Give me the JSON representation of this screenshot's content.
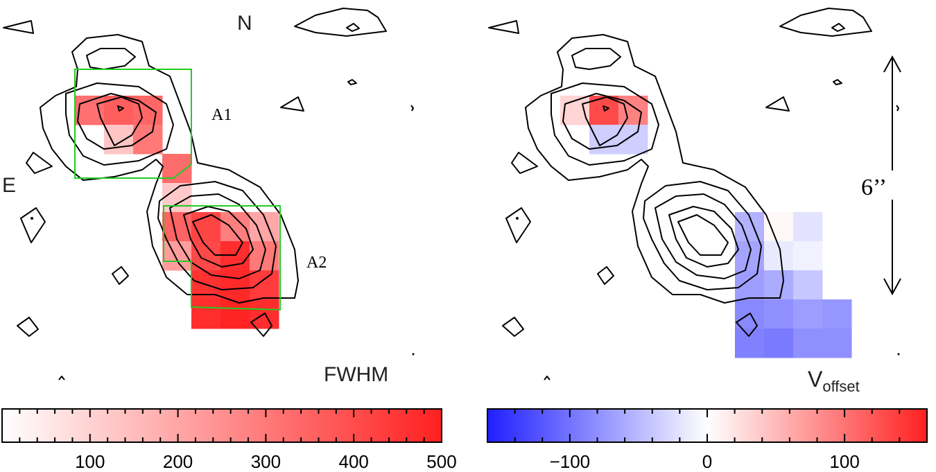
{
  "chart_data": [
    {
      "type": "heatmap",
      "quantity_label": "FWHM",
      "orientation_labels": {
        "north": "N",
        "east": "E"
      },
      "regions": [
        {
          "name": "A1"
        },
        {
          "name": "A2"
        }
      ],
      "colorbar": {
        "range": [
          0,
          500
        ],
        "tick_labels": [
          100,
          200,
          300,
          400,
          500
        ],
        "colors": [
          "#ffffff",
          "#ff2020"
        ]
      },
      "cells": [
        {
          "col": 0,
          "row": 0,
          "value": 320
        },
        {
          "col": 1,
          "row": 0,
          "value": 360
        },
        {
          "col": 2,
          "row": 0,
          "value": 340
        },
        {
          "col": 1,
          "row": 1,
          "value": 130
        },
        {
          "col": 2,
          "row": 1,
          "value": 300
        },
        {
          "col": 3,
          "row": 2,
          "value": 330
        },
        {
          "col": 3,
          "row": 3,
          "value": 120
        },
        {
          "col": 3,
          "row": 4,
          "value": 350
        },
        {
          "col": 4,
          "row": 4,
          "value": 420
        },
        {
          "col": 5,
          "row": 4,
          "value": 290
        },
        {
          "col": 6,
          "row": 4,
          "value": 200
        },
        {
          "col": 3,
          "row": 5,
          "value": 220
        },
        {
          "col": 4,
          "row": 5,
          "value": 410
        },
        {
          "col": 5,
          "row": 5,
          "value": 470
        },
        {
          "col": 6,
          "row": 5,
          "value": 300
        },
        {
          "col": 4,
          "row": 6,
          "value": 460
        },
        {
          "col": 5,
          "row": 6,
          "value": 480
        },
        {
          "col": 6,
          "row": 6,
          "value": 440
        },
        {
          "col": 4,
          "row": 7,
          "value": 470
        },
        {
          "col": 5,
          "row": 7,
          "value": 490
        },
        {
          "col": 6,
          "row": 7,
          "value": 470
        }
      ]
    },
    {
      "type": "heatmap",
      "quantity_label": "V",
      "quantity_subscript": "offset",
      "scale_bar_label": "6’’",
      "colorbar": {
        "range": [
          -160,
          160
        ],
        "tick_labels": [
          "−100",
          "0",
          "100"
        ],
        "tick_values": [
          -100,
          0,
          100
        ],
        "colors": [
          "#1f1fff",
          "#ffffff",
          "#ff2020"
        ]
      },
      "cells": [
        {
          "col": 0,
          "row": 0,
          "value": 30
        },
        {
          "col": 1,
          "row": 0,
          "value": 130
        },
        {
          "col": 2,
          "row": 0,
          "value": 90
        },
        {
          "col": 1,
          "row": 1,
          "value": -35
        },
        {
          "col": 2,
          "row": 1,
          "value": -35
        },
        {
          "col": 6,
          "row": 4,
          "value": -55
        },
        {
          "col": 7,
          "row": 4,
          "value": 5
        },
        {
          "col": 8,
          "row": 4,
          "value": -20
        },
        {
          "col": 6,
          "row": 5,
          "value": -65
        },
        {
          "col": 7,
          "row": 5,
          "value": -15
        },
        {
          "col": 8,
          "row": 5,
          "value": -10
        },
        {
          "col": 6,
          "row": 6,
          "value": -70
        },
        {
          "col": 7,
          "row": 6,
          "value": -60
        },
        {
          "col": 8,
          "row": 6,
          "value": -40
        },
        {
          "col": 6,
          "row": 7,
          "value": -85
        },
        {
          "col": 7,
          "row": 7,
          "value": -80
        },
        {
          "col": 8,
          "row": 7,
          "value": -70
        },
        {
          "col": 9,
          "row": 7,
          "value": -75
        },
        {
          "col": 6,
          "row": 8,
          "value": -90
        },
        {
          "col": 7,
          "row": 8,
          "value": -95
        },
        {
          "col": 8,
          "row": 8,
          "value": -80
        },
        {
          "col": 9,
          "row": 8,
          "value": -80
        }
      ]
    }
  ]
}
